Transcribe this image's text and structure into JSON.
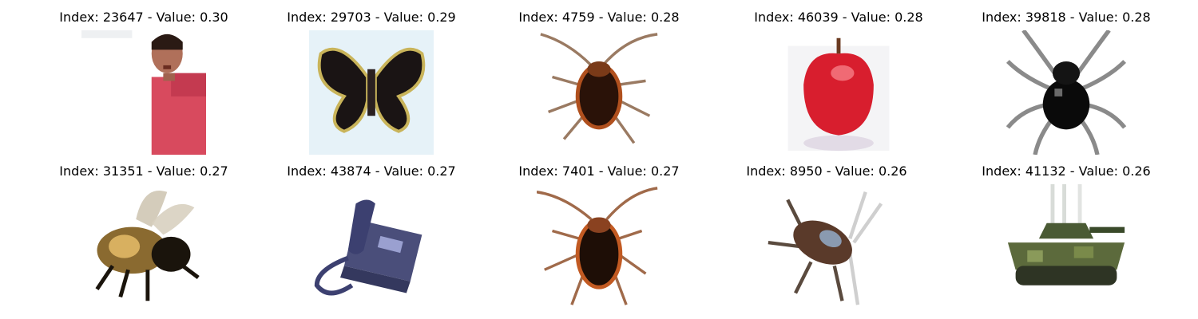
{
  "figure": {
    "items": [
      {
        "index_text": "Index: 23647 - Value: 0.30",
        "subject": "person-image"
      },
      {
        "index_text": "Index: 29703 - Value: 0.29",
        "subject": "butterfly-image"
      },
      {
        "index_text": "Index: 4759 - Value: 0.28",
        "subject": "cockroach-image"
      },
      {
        "index_text": "Index: 46039 - Value: 0.28",
        "subject": "apple-image"
      },
      {
        "index_text": "Index: 39818 - Value: 0.28",
        "subject": "spider-image"
      },
      {
        "index_text": "Index: 31351 - Value: 0.27",
        "subject": "bee-image"
      },
      {
        "index_text": "Index: 43874 - Value: 0.27",
        "subject": "telephone-image"
      },
      {
        "index_text": "Index: 7401 - Value: 0.27",
        "subject": "cockroach-image"
      },
      {
        "index_text": "Index: 8950 - Value: 0.26",
        "subject": "beetle-image"
      },
      {
        "index_text": "Index: 41132 - Value: 0.26",
        "subject": "tank-image"
      }
    ]
  }
}
